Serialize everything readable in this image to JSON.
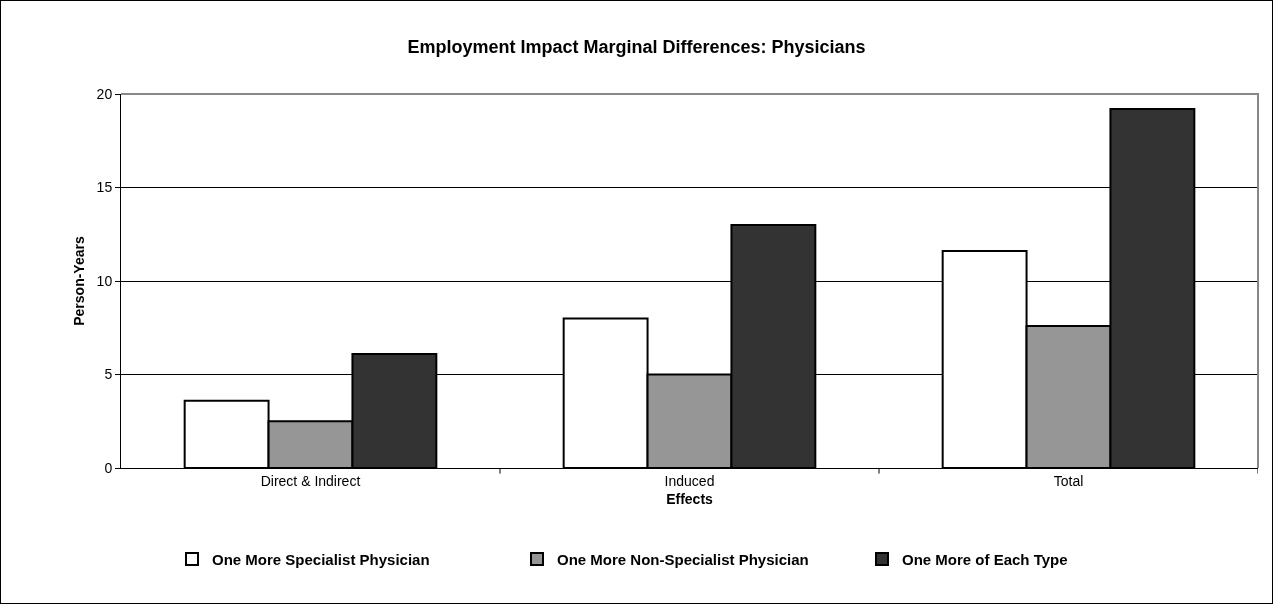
{
  "chart_data": {
    "type": "bar",
    "title": "Employment Impact Marginal Differences: Physicians",
    "xlabel": "Effects",
    "ylabel": "Person-Years",
    "categories": [
      "Direct & Indirect",
      "Induced",
      "Total"
    ],
    "series": [
      {
        "name": "One More Specialist Physician",
        "color": "#ffffff",
        "values": [
          3.6,
          8.0,
          11.6
        ]
      },
      {
        "name": "One More Non-Specialist Physician",
        "color": "#969696",
        "values": [
          2.5,
          5.0,
          7.6
        ]
      },
      {
        "name": "One More of Each Type",
        "color": "#333333",
        "values": [
          6.1,
          13.0,
          19.2
        ]
      }
    ],
    "ylim": [
      0,
      20
    ],
    "yticks": [
      0,
      5,
      10,
      15,
      20
    ],
    "grid": "y",
    "legend": "bottom"
  }
}
